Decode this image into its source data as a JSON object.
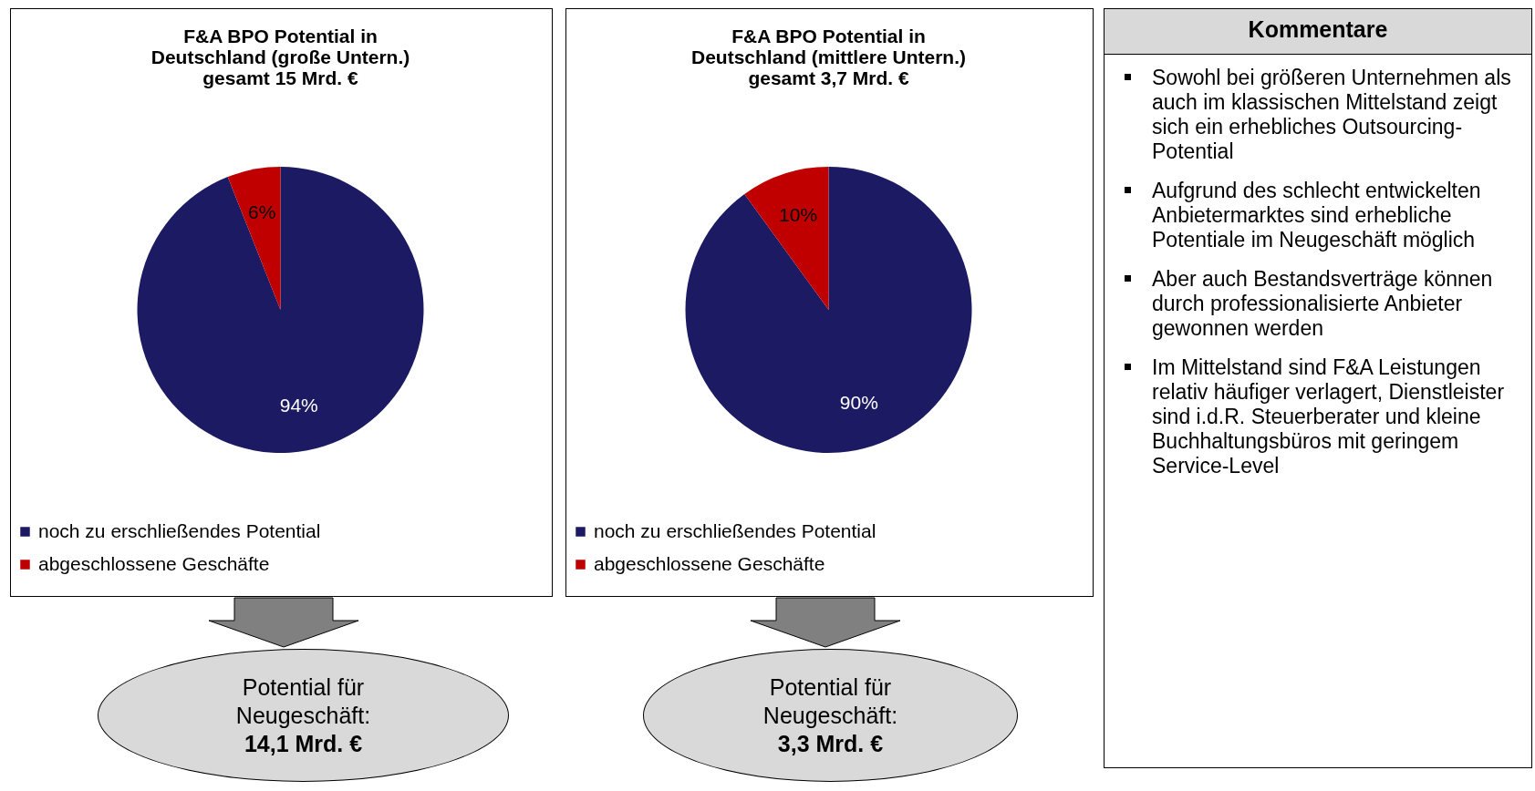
{
  "chart_data": [
    {
      "type": "pie",
      "title": "F&A BPO  Potential in\nDeutschland (große Untern.)\ngesamt 15 Mrd. €",
      "categories": [
        "noch zu erschließendes Potential",
        "abgeschlossene Geschäfte"
      ],
      "values": [
        94,
        6
      ],
      "colors": [
        "#1b1a62",
        "#c00000"
      ],
      "value_labels": [
        "94%",
        "6%"
      ],
      "legend": "bottom",
      "annotations": [
        "Potential für\nNeugeschäft:\n14,1 Mrd. €"
      ]
    },
    {
      "type": "pie",
      "title": "F&A BPO Potential in\nDeutschland (mittlere Untern.)\ngesamt 3,7 Mrd. €",
      "categories": [
        "noch zu erschließendes Potential",
        "abgeschlossene Geschäfte"
      ],
      "values": [
        90,
        10
      ],
      "colors": [
        "#1b1a62",
        "#c00000"
      ],
      "value_labels": [
        "90%",
        "10%"
      ],
      "legend": "bottom",
      "annotations": [
        "Potential für\nNeugeschäft:\n3,3 Mrd. €"
      ]
    },
    {
      "type": "other",
      "title": "Kommentare",
      "annotations": [
        "Sowohl bei größeren Unternehmen als auch im klassischen Mittelstand zeigt sich ein erhebliches Outsourcing-Potential",
        "Aufgrund des schlecht entwickelten Anbietermarktes sind erhebliche Potentiale im Neugeschäft möglich",
        "Aber auch Bestandsverträge können durch professionalisierte Anbieter gewonnen werden",
        "Im Mittelstand sind F&A Leistungen relativ häufiger verlagert, Dienstleister sind i.d.R. Steuerberater und kleine Buchhaltungsbüros mit geringem Service-Level"
      ]
    }
  ]
}
